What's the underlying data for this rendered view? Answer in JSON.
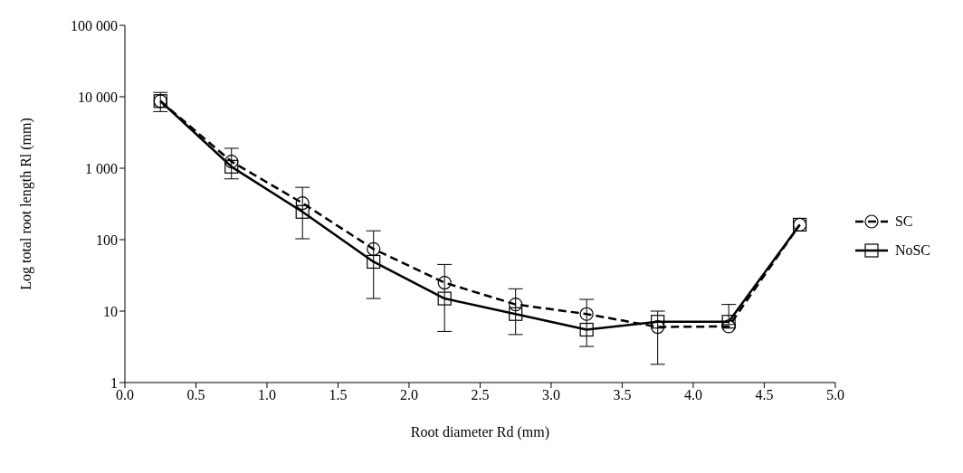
{
  "chart_data": {
    "type": "line",
    "xlabel": "Root diameter Rd (mm)",
    "ylabel": "Log total root length Rl (mm)",
    "x": [
      0.25,
      0.75,
      1.25,
      1.75,
      2.25,
      2.75,
      3.25,
      3.75,
      4.25,
      4.75
    ],
    "series": [
      {
        "name": "SC",
        "color": "#000000",
        "marker": "circle",
        "line_style": "dashed",
        "values": [
          8700,
          1240,
          325,
          74,
          25,
          12.4,
          9.1,
          6.0,
          6.1,
          162
        ]
      },
      {
        "name": "NoSC",
        "color": "#000000",
        "marker": "square",
        "line_style": "solid",
        "values": [
          8700,
          1050,
          245,
          49,
          15,
          9.1,
          5.5,
          7.1,
          7.1,
          162
        ],
        "errors": [
          [
            6200,
            11500
          ],
          [
            710,
            1900
          ],
          [
            103,
            540
          ],
          [
            15,
            133
          ],
          [
            5.2,
            45
          ],
          [
            4.7,
            20.5
          ],
          [
            3.2,
            14.6
          ],
          [
            1.8,
            10
          ],
          [
            6.5,
            12.4
          ],
          null
        ]
      }
    ],
    "xlim": [
      0,
      5
    ],
    "xticks": [
      {
        "value": 0,
        "label": "0.0"
      },
      {
        "value": 0.5,
        "label": "0.5"
      },
      {
        "value": 1,
        "label": "1.0"
      },
      {
        "value": 1.5,
        "label": "1.5"
      },
      {
        "value": 2,
        "label": "2.0"
      },
      {
        "value": 2.5,
        "label": "2.5"
      },
      {
        "value": 3,
        "label": "3.0"
      },
      {
        "value": 3.5,
        "label": "3.5"
      },
      {
        "value": 4,
        "label": "4.0"
      },
      {
        "value": 4.5,
        "label": "4.5"
      },
      {
        "value": 5,
        "label": "5.0"
      }
    ],
    "ylim": [
      1,
      100000
    ],
    "yticks": [
      1,
      10,
      100,
      {
        "value": 1000,
        "label": "1 000"
      },
      {
        "value": 10000,
        "label": "10 000"
      },
      {
        "value": 100000,
        "label": "100 000"
      }
    ],
    "log": "y",
    "grid": false,
    "legend": "right"
  }
}
